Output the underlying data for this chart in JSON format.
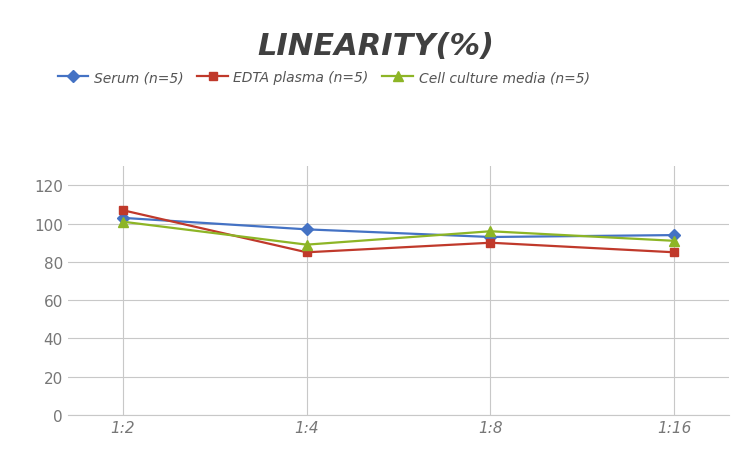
{
  "title": "LINEARITY(%)",
  "x_labels": [
    "1:2",
    "1:4",
    "1:8",
    "1:16"
  ],
  "x_positions": [
    0,
    1,
    2,
    3
  ],
  "series": [
    {
      "label": "Serum (n=5)",
      "values": [
        103,
        97,
        93,
        94
      ],
      "color": "#4472C4",
      "marker": "D",
      "marker_size": 6,
      "linewidth": 1.6
    },
    {
      "label": "EDTA plasma (n=5)",
      "values": [
        107,
        85,
        90,
        85
      ],
      "color": "#C0392B",
      "marker": "s",
      "marker_size": 6,
      "linewidth": 1.6
    },
    {
      "label": "Cell culture media (n=5)",
      "values": [
        101,
        89,
        96,
        91
      ],
      "color": "#8DB526",
      "marker": "^",
      "marker_size": 7,
      "linewidth": 1.6
    }
  ],
  "ylim": [
    0,
    130
  ],
  "yticks": [
    0,
    20,
    40,
    60,
    80,
    100,
    120
  ],
  "title_fontsize": 22,
  "title_style": "italic",
  "title_weight": "bold",
  "title_color": "#404040",
  "legend_fontsize": 10,
  "tick_fontsize": 11,
  "background_color": "#FFFFFF",
  "grid_color": "#C8C8C8",
  "grid_linewidth": 0.8
}
